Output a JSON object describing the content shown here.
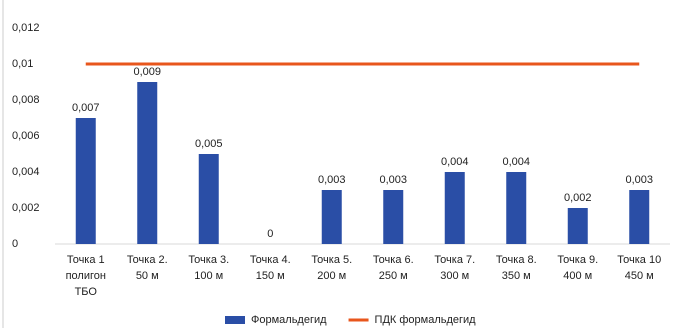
{
  "chart_data": {
    "type": "bar",
    "categories": [
      [
        "Точка 1",
        "полигон",
        "ТБО"
      ],
      [
        "Точка 2.",
        "50 м"
      ],
      [
        "Точка 3.",
        "100 м"
      ],
      [
        "Точка 4.",
        "150 м"
      ],
      [
        "Точка 5.",
        "200 м"
      ],
      [
        "Точка 6.",
        "250 м"
      ],
      [
        "Точка 7.",
        "300 м"
      ],
      [
        "Точка 8.",
        "350 м"
      ],
      [
        "Точка 9.",
        "400 м"
      ],
      [
        "Точка 10",
        "450 м"
      ]
    ],
    "series": [
      {
        "name": "Формальдегид",
        "type": "bar",
        "color": "#2a4ea6",
        "values": [
          0.007,
          0.009,
          0.005,
          0,
          0.003,
          0.003,
          0.004,
          0.004,
          0.002,
          0.003
        ],
        "value_labels": [
          "0,007",
          "0,009",
          "0,005",
          "0",
          "0,003",
          "0,003",
          "0,004",
          "0,004",
          "0,002",
          "0,003"
        ]
      },
      {
        "name": "ПДК формальдегид",
        "type": "line",
        "color": "#e8561c",
        "values": [
          0.01,
          0.01,
          0.01,
          0.01,
          0.01,
          0.01,
          0.01,
          0.01,
          0.01,
          0.01
        ]
      }
    ],
    "ylim": [
      0,
      0.012
    ],
    "yticks": [
      0,
      {
        "value": 0.002,
        "label": "0,002"
      },
      {
        "value": 0.004,
        "label": "0,004"
      },
      {
        "value": 0.006,
        "label": "0,006"
      },
      {
        "value": 0.008,
        "label": "0,008"
      },
      {
        "value": 0.01,
        "label": "0,01"
      },
      {
        "value": 0.012,
        "label": "0,012"
      }
    ],
    "legend": "bottom"
  }
}
